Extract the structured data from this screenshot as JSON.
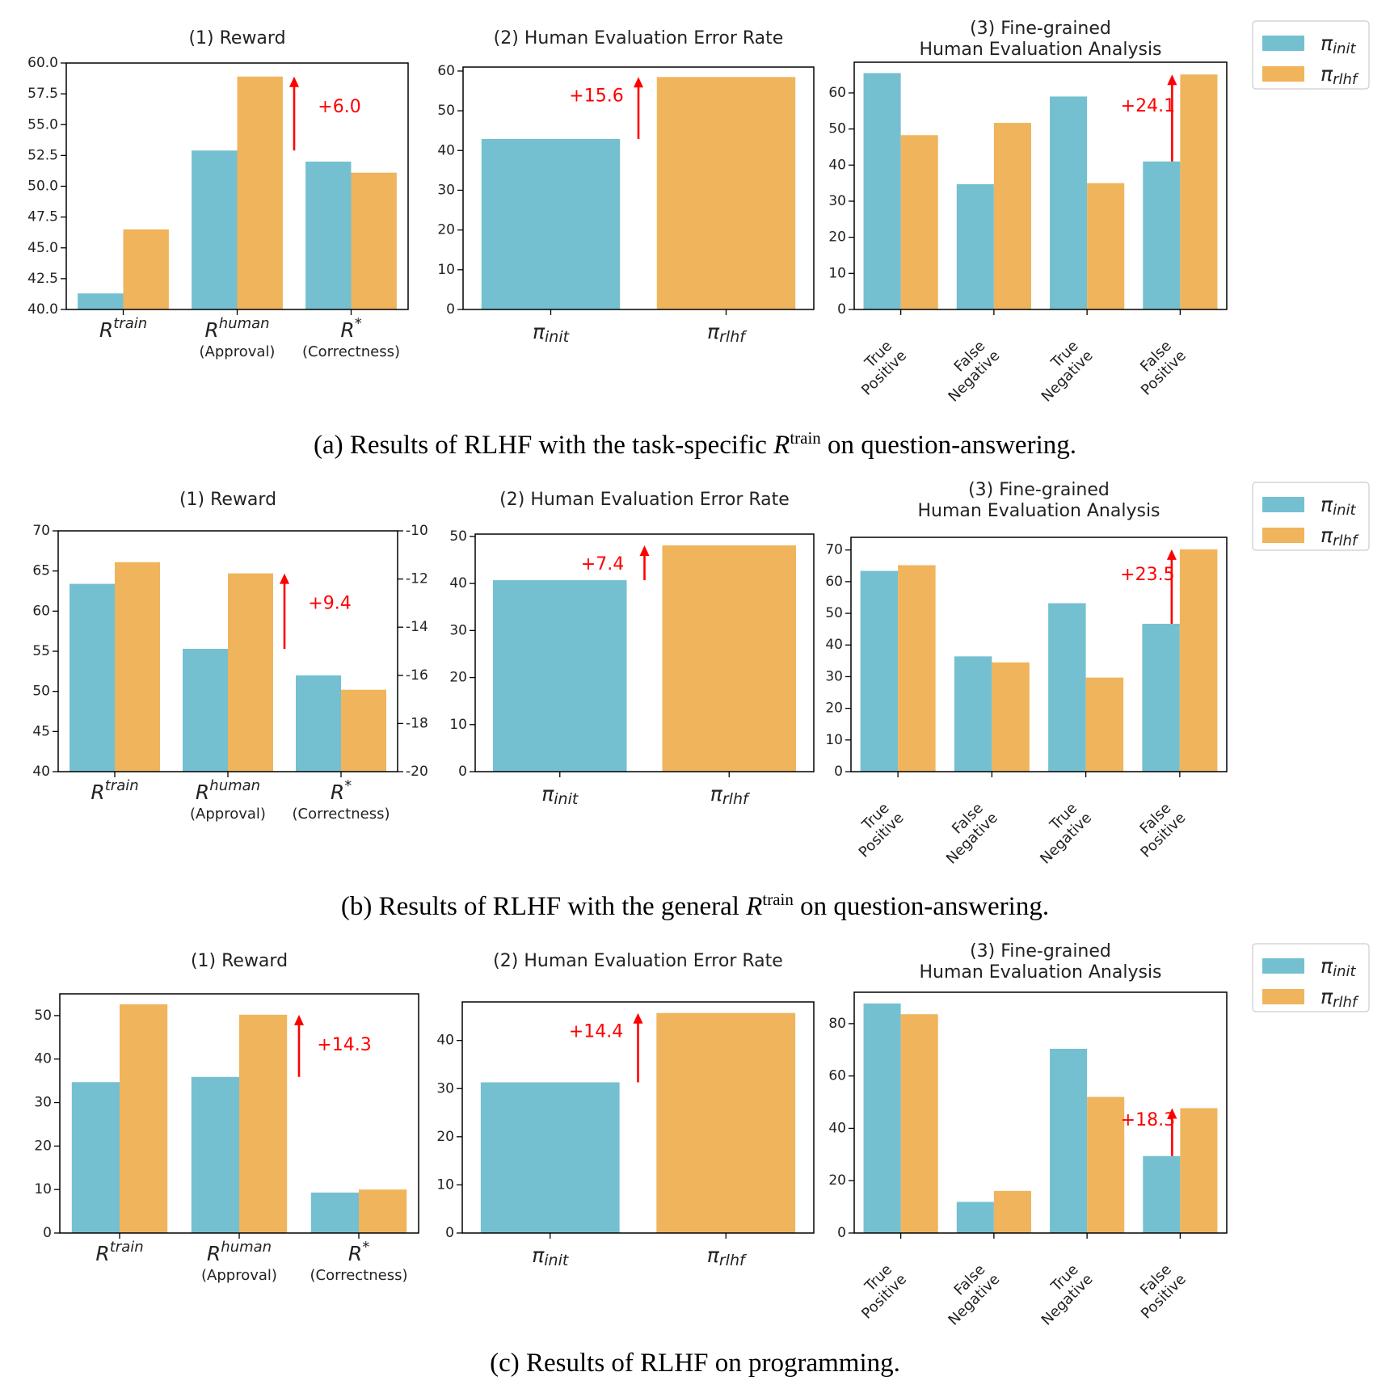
{
  "colors": {
    "pi_init": "#74c0d0",
    "pi_rlhf": "#f0b45c",
    "annotation": "#ff0000"
  },
  "legend": {
    "entries": [
      {
        "symbol": "π",
        "sub": "init",
        "color": "#74c0d0"
      },
      {
        "symbol": "π",
        "sub": "rlhf",
        "color": "#f0b45c"
      }
    ]
  },
  "captions": {
    "a": {
      "before": "(a) Results of RLHF with the task-specific ",
      "var": "R",
      "sup": "train",
      "after": " on question-answering."
    },
    "b": {
      "before": "(b) Results of RLHF with the general ",
      "var": "R",
      "sup": "train",
      "after": " on question-answering."
    },
    "c": {
      "text": "(c) Results of RLHF on programming."
    }
  },
  "chart_data": [
    {
      "id": "a1",
      "row": "a",
      "type": "bar",
      "title": "(1) Reward",
      "categories": [
        {
          "base": "R",
          "sup": "train",
          "sub": ""
        },
        {
          "base": "R",
          "sup": "human",
          "sub": "(Approval)"
        },
        {
          "base": "R",
          "sup": "*",
          "sub": "(Correctness)"
        }
      ],
      "series": [
        {
          "values": [
            41.3,
            52.9,
            52.0
          ]
        },
        {
          "values": [
            46.5,
            58.9,
            51.1
          ]
        }
      ],
      "ylim": [
        40,
        60
      ],
      "yticks": [
        "40.0",
        "42.5",
        "45.0",
        "47.5",
        "50.0",
        "52.5",
        "55.0",
        "57.5",
        "60.0"
      ],
      "annotation": {
        "text": "+6.0",
        "category": 1,
        "from": 52.9,
        "to": 58.9
      }
    },
    {
      "id": "a2",
      "row": "a",
      "type": "bar",
      "title": "(2) Human Evaluation Error Rate",
      "categories": [
        {
          "pi": "init"
        },
        {
          "pi": "rlhf"
        }
      ],
      "values": [
        42.9,
        58.5
      ],
      "ylim": [
        0,
        61
      ],
      "yticks": [
        "0",
        "10",
        "20",
        "30",
        "40",
        "50",
        "60"
      ],
      "annotation": {
        "text": "+15.6",
        "from": 42.9,
        "to": 58.5
      }
    },
    {
      "id": "a3",
      "row": "a",
      "type": "bar",
      "title": [
        "(3) Fine-grained",
        "Human Evaluation Analysis"
      ],
      "categories": [
        [
          "True",
          "Positive"
        ],
        [
          "False",
          "Negative"
        ],
        [
          "True",
          "Negative"
        ],
        [
          "False",
          "Positive"
        ]
      ],
      "series": [
        {
          "values": [
            65.5,
            34.7,
            59.0,
            41.0
          ]
        },
        {
          "values": [
            48.3,
            51.7,
            35.0,
            65.1
          ]
        }
      ],
      "ylim": [
        0,
        68.5
      ],
      "yticks": [
        "0",
        "10",
        "20",
        "30",
        "40",
        "50",
        "60"
      ],
      "annotation": {
        "text": "+24.1",
        "category": 3,
        "from": 41.0,
        "to": 65.1
      }
    },
    {
      "id": "b1",
      "row": "b",
      "type": "bar",
      "title": "(1) Reward",
      "categories": [
        {
          "base": "R",
          "sup": "train",
          "sub": ""
        },
        {
          "base": "R",
          "sup": "human",
          "sub": "(Approval)"
        },
        {
          "base": "R",
          "sup": "*",
          "sub": "(Correctness)"
        }
      ],
      "series": [
        {
          "values": [
            63.4,
            55.3,
            52.0
          ]
        },
        {
          "values": [
            66.1,
            64.7,
            50.2
          ]
        }
      ],
      "ylim": [
        40,
        70
      ],
      "yticks": [
        "40",
        "45",
        "50",
        "55",
        "60",
        "65",
        "70"
      ],
      "y2ticks": [
        "-20",
        "-18",
        "-16",
        "-14",
        "-12",
        "-10"
      ],
      "y2lim": [
        -20,
        -10
      ],
      "annotation": {
        "text": "+9.4",
        "category": 1,
        "from": 55.3,
        "to": 64.7
      }
    },
    {
      "id": "b2",
      "row": "b",
      "type": "bar",
      "title": "(2) Human Evaluation Error Rate",
      "categories": [
        {
          "pi": "init"
        },
        {
          "pi": "rlhf"
        }
      ],
      "values": [
        40.7,
        48.1
      ],
      "ylim": [
        0,
        50.5
      ],
      "yticks": [
        "0",
        "10",
        "20",
        "30",
        "40",
        "50"
      ],
      "annotation": {
        "text": "+7.4",
        "from": 40.7,
        "to": 48.1
      }
    },
    {
      "id": "b3",
      "row": "b",
      "type": "bar",
      "title": [
        "(3) Fine-grained",
        "Human Evaluation Analysis"
      ],
      "categories": [
        [
          "True",
          "Positive"
        ],
        [
          "False",
          "Negative"
        ],
        [
          "True",
          "Negative"
        ],
        [
          "False",
          "Positive"
        ]
      ],
      "series": [
        {
          "values": [
            63.4,
            36.4,
            53.2,
            46.7
          ]
        },
        {
          "values": [
            65.2,
            34.5,
            29.7,
            70.2
          ]
        }
      ],
      "ylim": [
        0,
        74
      ],
      "yticks": [
        "0",
        "10",
        "20",
        "30",
        "40",
        "50",
        "60",
        "70"
      ],
      "annotation": {
        "text": "+23.5",
        "category": 3,
        "from": 46.7,
        "to": 70.2
      }
    },
    {
      "id": "c1",
      "row": "c",
      "type": "bar",
      "title": "(1) Reward",
      "categories": [
        {
          "base": "R",
          "sup": "train",
          "sub": ""
        },
        {
          "base": "R",
          "sup": "human",
          "sub": "(Approval)"
        },
        {
          "base": "R",
          "sup": "*",
          "sub": "(Correctness)"
        }
      ],
      "series": [
        {
          "values": [
            34.7,
            35.9,
            9.3
          ]
        },
        {
          "values": [
            52.6,
            50.2,
            10.0
          ]
        }
      ],
      "ylim": [
        0,
        55
      ],
      "yticks": [
        "0",
        "10",
        "20",
        "30",
        "40",
        "50"
      ],
      "annotation": {
        "text": "+14.3",
        "category": 1,
        "from": 35.9,
        "to": 50.2
      }
    },
    {
      "id": "c2",
      "row": "c",
      "type": "bar",
      "title": "(2) Human Evaluation Error Rate",
      "categories": [
        {
          "pi": "init"
        },
        {
          "pi": "rlhf"
        }
      ],
      "values": [
        31.3,
        45.7
      ],
      "ylim": [
        0,
        48
      ],
      "yticks": [
        "0",
        "10",
        "20",
        "30",
        "40"
      ],
      "annotation": {
        "text": "+14.4",
        "from": 31.3,
        "to": 45.7
      }
    },
    {
      "id": "c3",
      "row": "c",
      "type": "bar",
      "title": [
        "(3) Fine-grained",
        "Human Evaluation Analysis"
      ],
      "categories": [
        [
          "True",
          "Positive"
        ],
        [
          "False",
          "Negative"
        ],
        [
          "True",
          "Negative"
        ],
        [
          "False",
          "Positive"
        ]
      ],
      "series": [
        {
          "values": [
            87.7,
            11.9,
            70.4,
            29.4
          ]
        },
        {
          "values": [
            83.6,
            16.1,
            52.0,
            47.7
          ]
        }
      ],
      "ylim": [
        0,
        92
      ],
      "yticks": [
        "0",
        "20",
        "40",
        "60",
        "80"
      ],
      "annotation": {
        "text": "+18.3",
        "category": 3,
        "from": 29.4,
        "to": 47.7
      }
    }
  ]
}
